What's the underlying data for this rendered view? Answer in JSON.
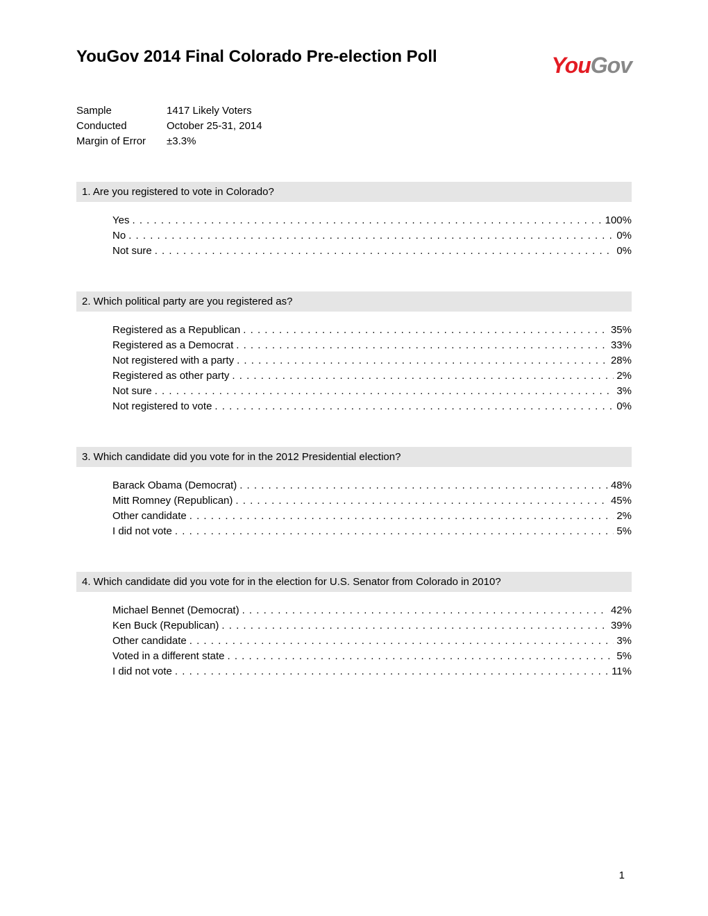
{
  "title": "YouGov 2014 Final Colorado Pre-election Poll",
  "logo": {
    "part1": "You",
    "part2": "Gov"
  },
  "meta": {
    "sample_label": "Sample",
    "sample_value": "1417 Likely Voters",
    "conducted_label": "Conducted",
    "conducted_value": "October 25-31, 2014",
    "moe_label": "Margin of Error",
    "moe_value": "±3.3%"
  },
  "questions": [
    {
      "number": "1.",
      "text": "Are you registered to vote in Colorado?",
      "responses": [
        {
          "label": "Yes",
          "value": "100%"
        },
        {
          "label": "No",
          "value": "0%"
        },
        {
          "label": "Not sure",
          "value": "0%"
        }
      ]
    },
    {
      "number": "2.",
      "text": "Which political party are you registered as?",
      "responses": [
        {
          "label": "Registered as a Republican",
          "value": "35%"
        },
        {
          "label": "Registered as a Democrat",
          "value": "33%"
        },
        {
          "label": "Not registered with a party",
          "value": "28%"
        },
        {
          "label": "Registered as other party",
          "value": "2%"
        },
        {
          "label": "Not sure",
          "value": "3%"
        },
        {
          "label": "Not registered to vote",
          "value": "0%"
        }
      ]
    },
    {
      "number": "3.",
      "text": "Which candidate did you vote for in the 2012 Presidential election?",
      "responses": [
        {
          "label": "Barack Obama (Democrat)",
          "value": "48%"
        },
        {
          "label": "Mitt Romney (Republican)",
          "value": "45%"
        },
        {
          "label": "Other candidate",
          "value": "2%"
        },
        {
          "label": "I did not vote",
          "value": "5%"
        }
      ]
    },
    {
      "number": "4.",
      "text": "Which candidate did you vote for in the election for U.S. Senator from Colorado in 2010?",
      "responses": [
        {
          "label": "Michael Bennet (Democrat)",
          "value": "42%"
        },
        {
          "label": "Ken Buck (Republican)",
          "value": "39%"
        },
        {
          "label": "Other candidate",
          "value": "3%"
        },
        {
          "label": "Voted in a different state",
          "value": "5%"
        },
        {
          "label": "I did not vote",
          "value": "11%"
        }
      ]
    }
  ],
  "page_number": "1",
  "dots": ". . . . . . . . . . . . . . . . . . . . . . . . . . . . . . . . . . . . . . . . . . . . . . . . . . . . . . . . . . . . . . . . . . . . . . . . . . . . . . . . . . . . . . . . . . . . . . . . . . . . . . . . . . . . . . . . . . . . . . . . . . . . . . . . . . . . . . . . . . . . . . . . . . . . . ."
}
